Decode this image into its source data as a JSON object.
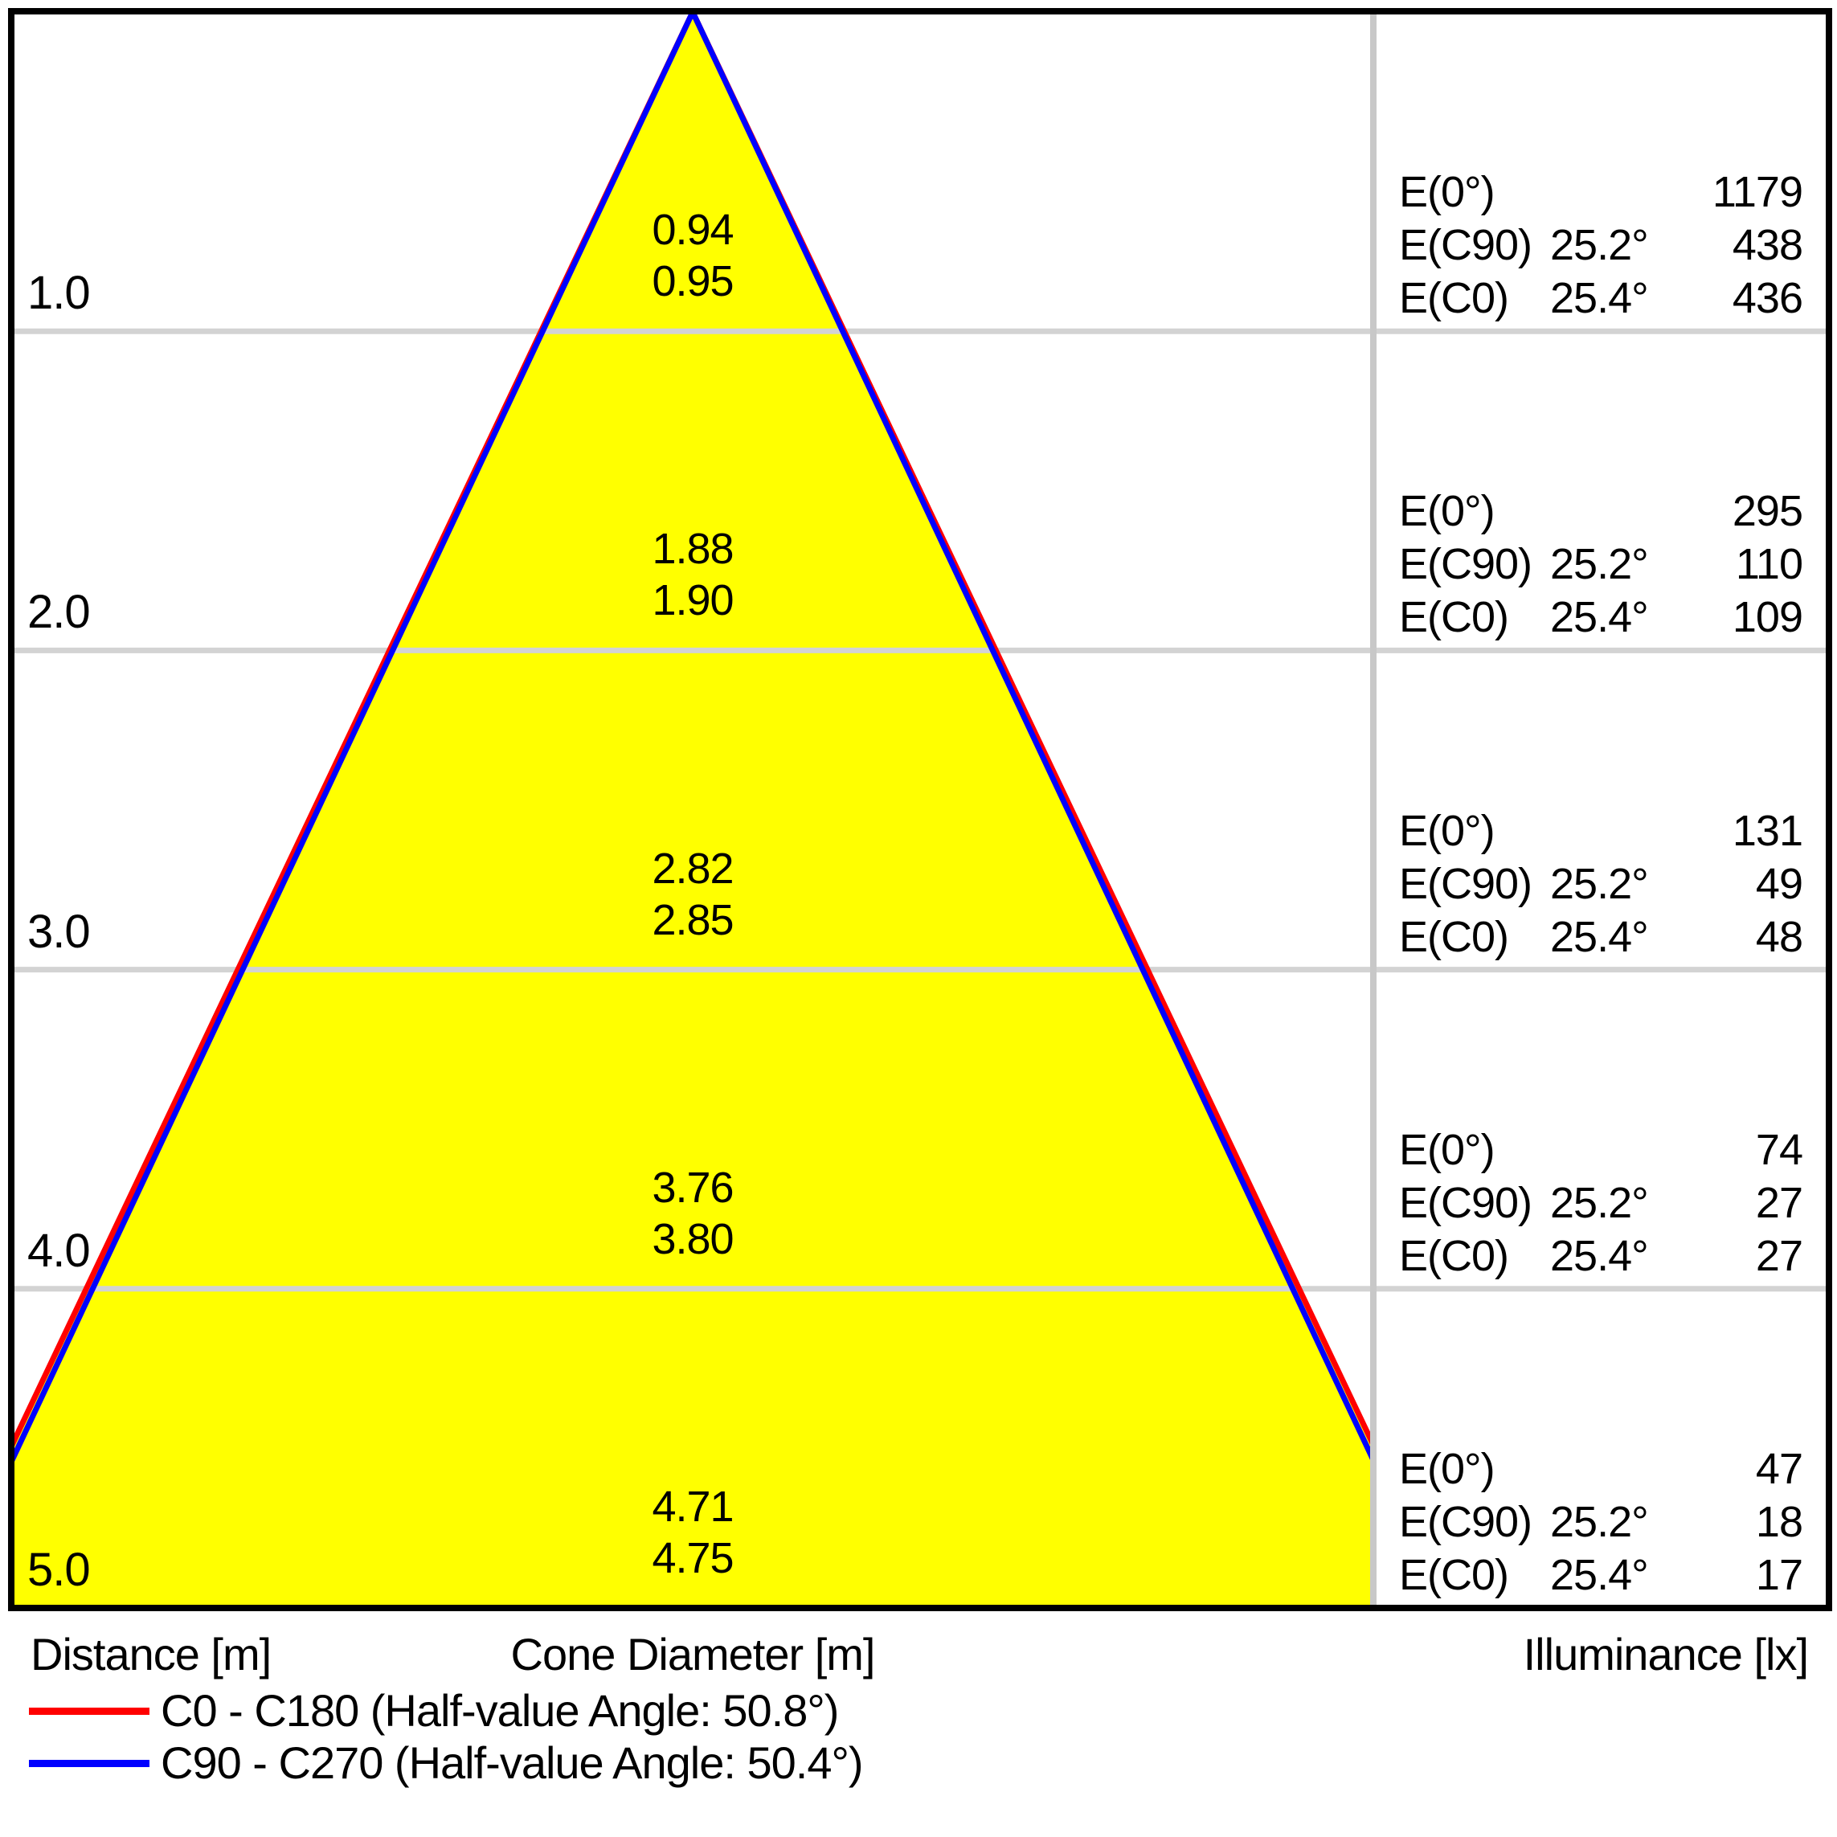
{
  "chart_data": {
    "type": "cone-diagram",
    "distance_axis_label": "Distance [m]",
    "cone_diameter_axis_label": "Cone Diameter [m]",
    "illuminance_axis_label": "Illuminance [lx]",
    "colors": {
      "cone_fill": "#ffff00",
      "c0_line": "#ff0000",
      "c90_line": "#0000ff",
      "grid_line": "#d3d3d3",
      "divider": "#c8c8c8",
      "border": "#000000"
    },
    "rows": [
      {
        "distance": "1.0",
        "cone_c90": "0.94",
        "cone_c0": "0.95",
        "e0_label": "E(0°)",
        "e0": "1179",
        "ec90_label": "E(C90)",
        "ec90_angle": "25.2°",
        "ec90": "438",
        "ec0_label": "E(C0)",
        "ec0_angle": "25.4°",
        "ec0": "436"
      },
      {
        "distance": "2.0",
        "cone_c90": "1.88",
        "cone_c0": "1.90",
        "e0_label": "E(0°)",
        "e0": "295",
        "ec90_label": "E(C90)",
        "ec90_angle": "25.2°",
        "ec90": "110",
        "ec0_label": "E(C0)",
        "ec0_angle": "25.4°",
        "ec0": "109"
      },
      {
        "distance": "3.0",
        "cone_c90": "2.82",
        "cone_c0": "2.85",
        "e0_label": "E(0°)",
        "e0": "131",
        "ec90_label": "E(C90)",
        "ec90_angle": "25.2°",
        "ec90": "49",
        "ec0_label": "E(C0)",
        "ec0_angle": "25.4°",
        "ec0": "48"
      },
      {
        "distance": "4.0",
        "cone_c90": "3.76",
        "cone_c0": "3.80",
        "e0_label": "E(0°)",
        "e0": "74",
        "ec90_label": "E(C90)",
        "ec90_angle": "25.2°",
        "ec90": "27",
        "ec0_label": "E(C0)",
        "ec0_angle": "25.4°",
        "ec0": "27"
      },
      {
        "distance": "5.0",
        "cone_c90": "4.71",
        "cone_c0": "4.75",
        "e0_label": "E(0°)",
        "e0": "47",
        "ec90_label": "E(C90)",
        "ec90_angle": "25.2°",
        "ec90": "18",
        "ec0_label": "E(C0)",
        "ec0_angle": "25.4°",
        "ec0": "17"
      }
    ],
    "legend": [
      {
        "series": "C0 - C180",
        "half_value_angle": "50.8°",
        "label": "C0 - C180 (Half-value Angle: 50.8°)",
        "color": "#ff0000"
      },
      {
        "series": "C90 - C270",
        "half_value_angle": "50.4°",
        "label": "C90 - C270 (Half-value Angle: 50.4°)",
        "color": "#0000ff"
      }
    ]
  }
}
